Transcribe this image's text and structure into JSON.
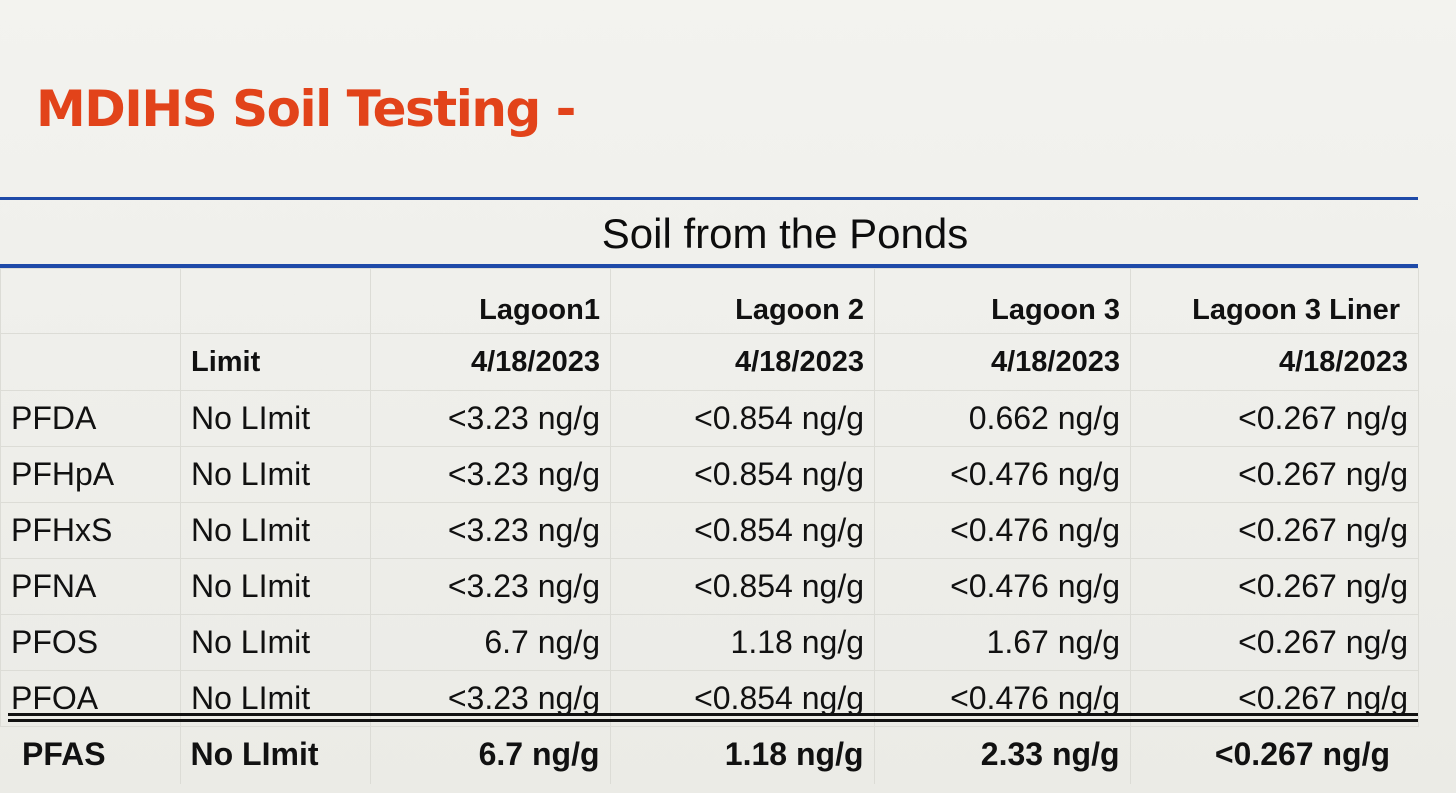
{
  "title": "MDIHS Soil Testing -",
  "section_title": "Soil from the Ponds",
  "table": {
    "limit_header": "Limit",
    "columns": [
      {
        "name": "Lagoon1",
        "date": "4/18/2023"
      },
      {
        "name": "Lagoon 2",
        "date": "4/18/2023"
      },
      {
        "name": "Lagoon 3",
        "date": "4/18/2023"
      },
      {
        "name": "Lagoon 3 Liner",
        "date": "4/18/2023"
      }
    ],
    "rows": [
      {
        "analyte": "PFDA",
        "limit": "No LImit",
        "values": [
          "<3.23 ng/g",
          "<0.854 ng/g",
          "0.662 ng/g",
          "<0.267 ng/g"
        ]
      },
      {
        "analyte": "PFHpA",
        "limit": "No LImit",
        "values": [
          "<3.23 ng/g",
          "<0.854 ng/g",
          "<0.476 ng/g",
          "<0.267 ng/g"
        ]
      },
      {
        "analyte": "PFHxS",
        "limit": "No LImit",
        "values": [
          "<3.23 ng/g",
          "<0.854 ng/g",
          "<0.476 ng/g",
          "<0.267 ng/g"
        ]
      },
      {
        "analyte": "PFNA",
        "limit": "No LImit",
        "values": [
          "<3.23 ng/g",
          "<0.854 ng/g",
          "<0.476 ng/g",
          "<0.267 ng/g"
        ]
      },
      {
        "analyte": "PFOS",
        "limit": "No LImit",
        "values": [
          "6.7 ng/g",
          "1.18 ng/g",
          "1.67 ng/g",
          "<0.267 ng/g"
        ]
      },
      {
        "analyte": "PFOA",
        "limit": "No LImit",
        "values": [
          "<3.23 ng/g",
          "<0.854 ng/g",
          "<0.476 ng/g",
          "<0.267 ng/g"
        ]
      }
    ],
    "total": {
      "analyte": "PFAS",
      "limit": "No LImit",
      "values": [
        "6.7 ng/g",
        "1.18 ng/g",
        "2.33 ng/g",
        "<0.267 ng/g"
      ]
    }
  },
  "colors": {
    "title": "#e2431a",
    "rule": "#1f4aa8"
  }
}
